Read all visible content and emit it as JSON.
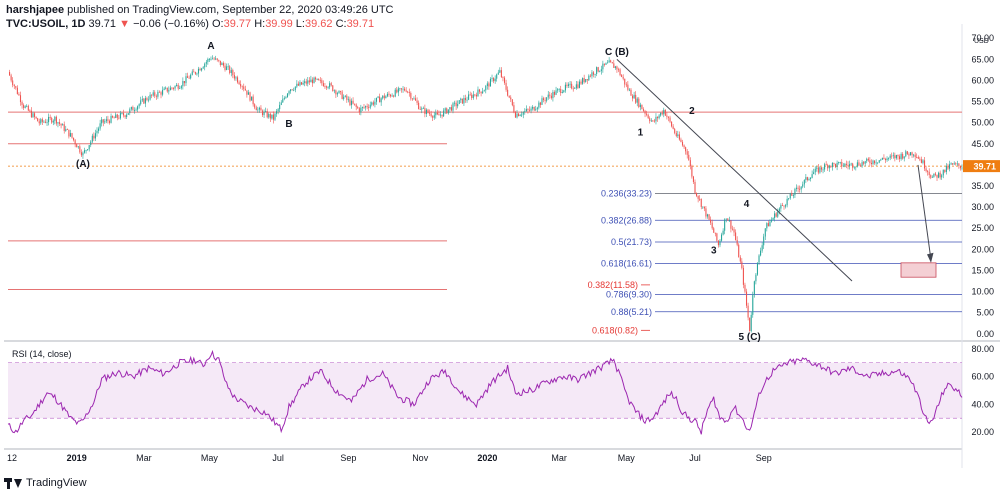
{
  "header": {
    "author": "harshjapee",
    "published": "published on TradingView.com, September 22, 2020 03:49:26 UTC",
    "symbol": "TVC:USOIL, 1D",
    "last": "39.71",
    "arrow": "▼",
    "change": "−0.06 (−0.16%)",
    "o_label": "O:",
    "o": "39.77",
    "h_label": "H:",
    "h": "39.99",
    "l_label": "L:",
    "l": "39.62",
    "c_label": "C:",
    "c": "39.71"
  },
  "footer": {
    "brand": "TradingView"
  },
  "colors": {
    "up": "#26a69a",
    "down": "#ef5350",
    "support": "#e57373",
    "fib": "#3f51b5",
    "fib_red": "#e53935",
    "rsi": "#9c27b0",
    "rsi_band": "rgba(156,39,176,0.10)",
    "price_tag": "#ef7d11"
  },
  "chart_data": [
    {
      "type": "candlestick",
      "title": "",
      "currency_label": "USD",
      "y_ticks": [
        "70.00",
        "65.00",
        "60.00",
        "55.00",
        "50.00",
        "45.00",
        "40.00",
        "35.00",
        "30.00",
        "25.00",
        "20.00",
        "15.00",
        "10.00",
        "5.00",
        "0.00"
      ],
      "ylim": [
        -1,
        71
      ],
      "x_ticks": [
        "12",
        "2019",
        "Mar",
        "May",
        "Jul",
        "Sep",
        "Nov",
        "2020",
        "Mar",
        "May",
        "Jul",
        "Sep"
      ],
      "last_price": "39.71",
      "path": [
        [
          0,
          62
        ],
        [
          10,
          54
        ],
        [
          20,
          50
        ],
        [
          30,
          51
        ],
        [
          40,
          47
        ],
        [
          48,
          42.5
        ],
        [
          60,
          50
        ],
        [
          75,
          52
        ],
        [
          90,
          56
        ],
        [
          110,
          59
        ],
        [
          120,
          62
        ],
        [
          130,
          65.5
        ],
        [
          140,
          63
        ],
        [
          150,
          59
        ],
        [
          160,
          53
        ],
        [
          170,
          51
        ],
        [
          180,
          58
        ],
        [
          195,
          60
        ],
        [
          205,
          59
        ],
        [
          215,
          56
        ],
        [
          225,
          53
        ],
        [
          240,
          56
        ],
        [
          255,
          58
        ],
        [
          265,
          53
        ],
        [
          275,
          51.5
        ],
        [
          290,
          55
        ],
        [
          305,
          58
        ],
        [
          315,
          62
        ],
        [
          325,
          52
        ],
        [
          335,
          53
        ],
        [
          345,
          56
        ],
        [
          355,
          58
        ],
        [
          365,
          59
        ],
        [
          375,
          62
        ],
        [
          385,
          64
        ],
        [
          390,
          63
        ],
        [
          397,
          58
        ],
        [
          405,
          54
        ],
        [
          413,
          50
        ],
        [
          420,
          53
        ],
        [
          428,
          47
        ],
        [
          435,
          43
        ],
        [
          440,
          34
        ],
        [
          445,
          30
        ],
        [
          450,
          26
        ],
        [
          455,
          21
        ],
        [
          460,
          28
        ],
        [
          465,
          24
        ],
        [
          470,
          15
        ],
        [
          475,
          1
        ],
        [
          478,
          13
        ],
        [
          485,
          25
        ],
        [
          495,
          30
        ],
        [
          505,
          34
        ],
        [
          515,
          38
        ],
        [
          525,
          40
        ],
        [
          540,
          40
        ],
        [
          555,
          41
        ],
        [
          570,
          42
        ],
        [
          580,
          43
        ],
        [
          585,
          41
        ],
        [
          592,
          37
        ],
        [
          598,
          38
        ],
        [
          604,
          40
        ],
        [
          610,
          39.7
        ]
      ],
      "horizontal_levels": [
        52.5,
        45,
        22,
        10.5
      ],
      "fib_levels": [
        {
          "label": "0.236(33.23)",
          "value": 33.23
        },
        {
          "label": "0.382(26.88)",
          "value": 26.88
        },
        {
          "label": "0.5(21.73)",
          "value": 21.73
        },
        {
          "label": "0.618(16.61)",
          "value": 16.61
        },
        {
          "label": "0.786(9.30)",
          "value": 9.3
        },
        {
          "label": "0.88(5.21)",
          "value": 5.21
        }
      ],
      "fib_ext_levels": [
        {
          "label": "0.382(11.58)",
          "value": 11.58
        },
        {
          "label": "0.618(0.82)",
          "value": 0.82
        }
      ],
      "wave_labels": [
        {
          "text": "A",
          "i": 130,
          "y": 67.5
        },
        {
          "text": "B",
          "i": 180,
          "y": 49
        },
        {
          "text": "(A)",
          "i": 48,
          "y": 39.5
        },
        {
          "text": "C (B)",
          "i": 390,
          "y": 66
        },
        {
          "text": "1",
          "i": 405,
          "y": 47
        },
        {
          "text": "2",
          "i": 438,
          "y": 52
        },
        {
          "text": "3",
          "i": 452,
          "y": 19
        },
        {
          "text": "4",
          "i": 473,
          "y": 30
        },
        {
          "text": "5 (C)",
          "i": 475,
          "y": -1.5
        }
      ]
    },
    {
      "type": "line",
      "title": "RSI (14, close)",
      "y_ticks": [
        "80.00",
        "60.00",
        "40.00",
        "20.00"
      ],
      "ylim": [
        10,
        82
      ],
      "band": [
        30,
        70
      ],
      "path": [
        [
          0,
          25
        ],
        [
          5,
          20
        ],
        [
          10,
          28
        ],
        [
          15,
          32
        ],
        [
          20,
          40
        ],
        [
          25,
          48
        ],
        [
          30,
          45
        ],
        [
          35,
          38
        ],
        [
          40,
          30
        ],
        [
          45,
          26
        ],
        [
          48,
          28
        ],
        [
          55,
          42
        ],
        [
          60,
          58
        ],
        [
          70,
          63
        ],
        [
          80,
          60
        ],
        [
          90,
          66
        ],
        [
          100,
          62
        ],
        [
          110,
          70
        ],
        [
          120,
          72
        ],
        [
          125,
          68
        ],
        [
          130,
          77
        ],
        [
          135,
          72
        ],
        [
          140,
          54
        ],
        [
          145,
          45
        ],
        [
          155,
          38
        ],
        [
          165,
          34
        ],
        [
          175,
          22
        ],
        [
          180,
          38
        ],
        [
          190,
          55
        ],
        [
          200,
          64
        ],
        [
          210,
          50
        ],
        [
          220,
          42
        ],
        [
          230,
          58
        ],
        [
          240,
          62
        ],
        [
          250,
          45
        ],
        [
          260,
          40
        ],
        [
          270,
          58
        ],
        [
          280,
          64
        ],
        [
          290,
          48
        ],
        [
          300,
          40
        ],
        [
          310,
          56
        ],
        [
          320,
          66
        ],
        [
          325,
          48
        ],
        [
          335,
          50
        ],
        [
          345,
          56
        ],
        [
          355,
          60
        ],
        [
          365,
          58
        ],
        [
          375,
          64
        ],
        [
          382,
          68
        ],
        [
          388,
          72
        ],
        [
          392,
          60
        ],
        [
          397,
          44
        ],
        [
          402,
          35
        ],
        [
          408,
          28
        ],
        [
          413,
          30
        ],
        [
          418,
          38
        ],
        [
          424,
          48
        ],
        [
          428,
          44
        ],
        [
          432,
          34
        ],
        [
          436,
          30
        ],
        [
          440,
          28
        ],
        [
          444,
          20
        ],
        [
          448,
          36
        ],
        [
          452,
          44
        ],
        [
          456,
          30
        ],
        [
          460,
          28
        ],
        [
          465,
          38
        ],
        [
          470,
          30
        ],
        [
          475,
          20
        ],
        [
          478,
          34
        ],
        [
          482,
          50
        ],
        [
          486,
          58
        ],
        [
          490,
          64
        ],
        [
          500,
          70
        ],
        [
          510,
          72
        ],
        [
          520,
          68
        ],
        [
          530,
          62
        ],
        [
          540,
          66
        ],
        [
          550,
          60
        ],
        [
          560,
          62
        ],
        [
          570,
          64
        ],
        [
          578,
          58
        ],
        [
          582,
          48
        ],
        [
          586,
          36
        ],
        [
          589,
          26
        ],
        [
          592,
          28
        ],
        [
          596,
          40
        ],
        [
          600,
          52
        ],
        [
          604,
          54
        ],
        [
          610,
          47
        ]
      ]
    }
  ]
}
